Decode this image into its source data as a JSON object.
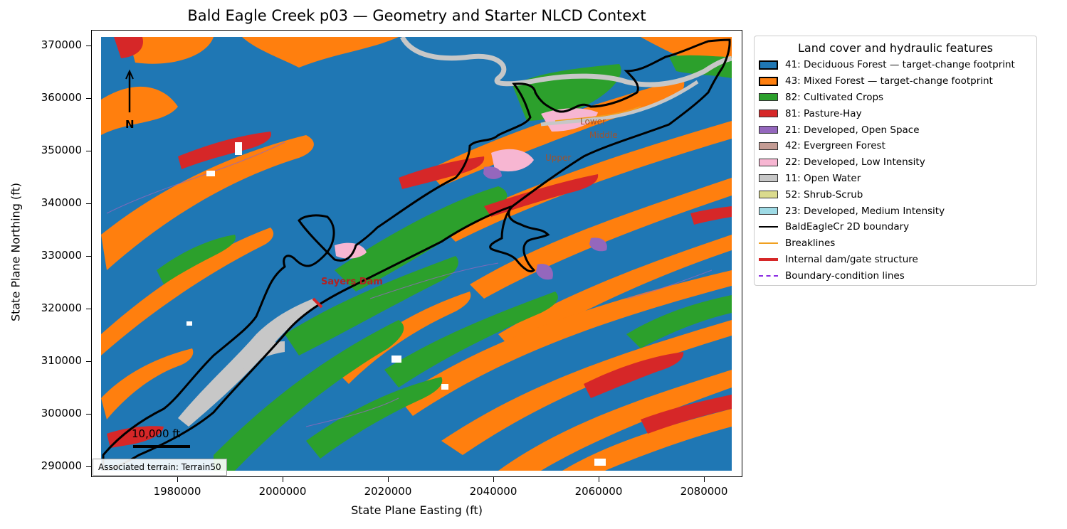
{
  "title": "Bald Eagle Creek p03 — Geometry and Starter NLCD Context",
  "axes": {
    "xlabel": "State Plane Easting (ft)",
    "ylabel": "State Plane Northing (ft)",
    "xticks": [
      "1980000",
      "2000000",
      "2020000",
      "2040000",
      "2060000",
      "2080000"
    ],
    "yticks": [
      "370000",
      "360000",
      "350000",
      "340000",
      "330000",
      "320000",
      "310000",
      "300000",
      "290000"
    ]
  },
  "map_labels": {
    "dam": "Sayers Dam",
    "lower": "Lower",
    "middle": "Middle",
    "upper": "Upper"
  },
  "north_arrow": "N",
  "scale_bar": "10,000 ft",
  "terrain_note": "Associated terrain: Terrain50",
  "legend": {
    "title": "Land cover and hydraulic features",
    "items": [
      {
        "label": "41: Deciduous Forest — target-change footprint",
        "color": "#1f77b4",
        "kind": "footprint"
      },
      {
        "label": "43: Mixed Forest — target-change footprint",
        "color": "#ff7f0e",
        "kind": "footprint"
      },
      {
        "label": "82: Cultivated Crops",
        "color": "#2ca02c",
        "kind": "patch"
      },
      {
        "label": "81: Pasture-Hay",
        "color": "#d62728",
        "kind": "patch"
      },
      {
        "label": "21: Developed, Open Space",
        "color": "#9467bd",
        "kind": "patch"
      },
      {
        "label": "42: Evergreen Forest",
        "color": "#c49c94",
        "kind": "patch"
      },
      {
        "label": "22: Developed, Low Intensity",
        "color": "#f7b6d2",
        "kind": "patch"
      },
      {
        "label": "11: Open Water",
        "color": "#c7c7c7",
        "kind": "patch"
      },
      {
        "label": "52: Shrub-Scrub",
        "color": "#dbdb8d",
        "kind": "patch"
      },
      {
        "label": "23: Developed, Medium Intensity",
        "color": "#9edae5",
        "kind": "patch"
      },
      {
        "label": "BaldEagleCr 2D boundary",
        "color": "#000000",
        "kind": "line-solid"
      },
      {
        "label": "Breaklines",
        "color": "#f0a020",
        "kind": "line-thin"
      },
      {
        "label": "Internal dam/gate structure",
        "color": "#d62728",
        "kind": "line-thick"
      },
      {
        "label": "Boundary-condition lines",
        "color": "#8a2be2",
        "kind": "line-dashed"
      }
    ]
  }
}
